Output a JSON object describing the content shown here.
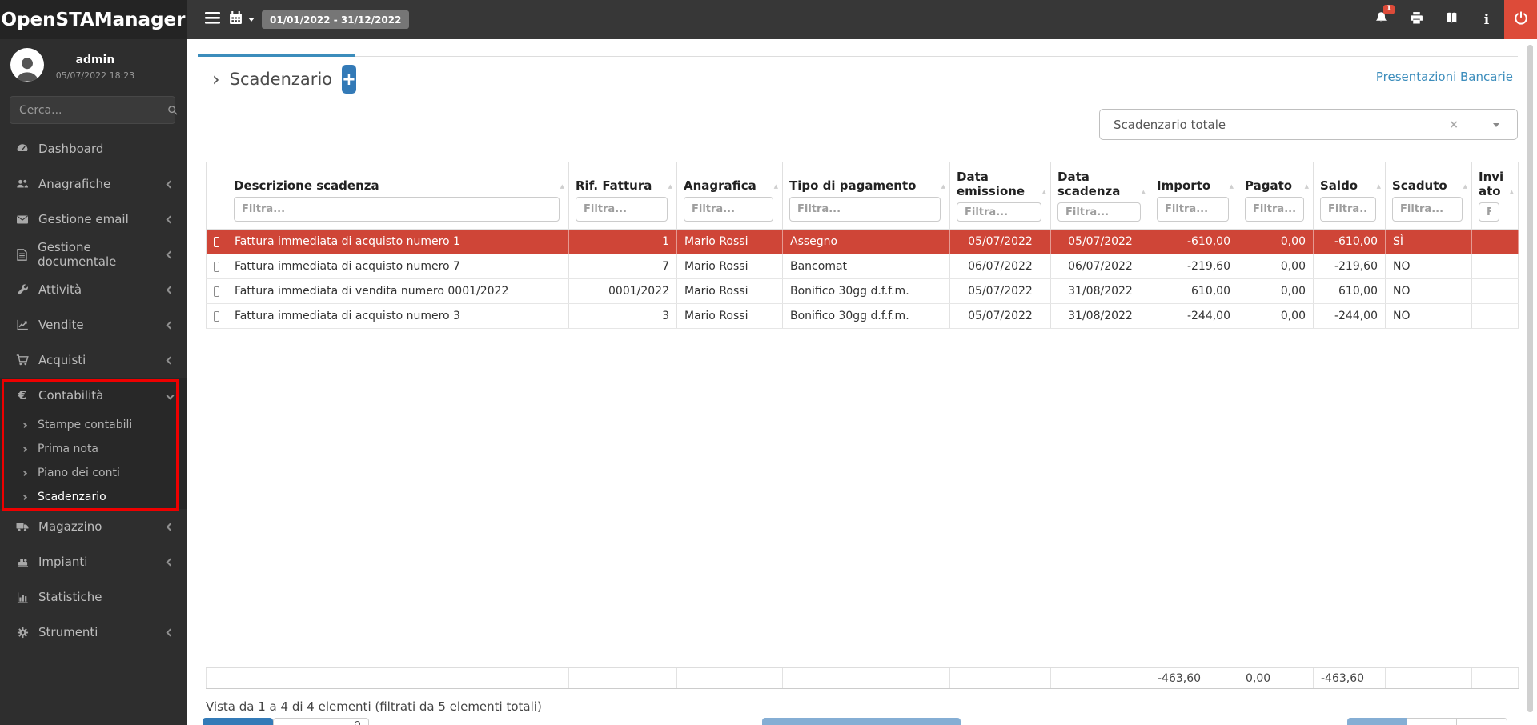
{
  "app": {
    "title": "OpenSTAManager"
  },
  "topbar": {
    "date_range": "01/01/2022 - 31/12/2022",
    "notification_count": "1"
  },
  "user": {
    "name": "admin",
    "datetime": "05/07/2022 18:23"
  },
  "sidebar": {
    "search_placeholder": "Cerca...",
    "items": [
      {
        "id": "dashboard",
        "icon": "gauge-icon",
        "label": "Dashboard",
        "chevron": "none"
      },
      {
        "id": "anagrafiche",
        "icon": "users-icon",
        "label": "Anagrafiche",
        "chevron": "left"
      },
      {
        "id": "gestione-email",
        "icon": "envelope-icon",
        "label": "Gestione email",
        "chevron": "left"
      },
      {
        "id": "gestione-documentale",
        "icon": "document-icon",
        "label": "Gestione documentale",
        "chevron": "left"
      },
      {
        "id": "attivita",
        "icon": "wrench-icon",
        "label": "Attività",
        "chevron": "left"
      },
      {
        "id": "vendite",
        "icon": "chart-line-icon",
        "label": "Vendite",
        "chevron": "left"
      },
      {
        "id": "acquisti",
        "icon": "cart-icon",
        "label": "Acquisti",
        "chevron": "left"
      },
      {
        "id": "contabilita",
        "icon": "euro-icon",
        "label": "Contabilità",
        "chevron": "down",
        "expanded": true,
        "submenu": [
          {
            "label": "Stampe contabili",
            "active": false
          },
          {
            "label": "Prima nota",
            "active": false
          },
          {
            "label": "Piano dei conti",
            "active": false
          },
          {
            "label": "Scadenzario",
            "active": true
          }
        ]
      },
      {
        "id": "magazzino",
        "icon": "truck-icon",
        "label": "Magazzino",
        "chevron": "left"
      },
      {
        "id": "impianti",
        "icon": "machine-icon",
        "label": "Impianti",
        "chevron": "left"
      },
      {
        "id": "statistiche",
        "icon": "bar-chart-icon",
        "label": "Statistiche",
        "chevron": "none"
      },
      {
        "id": "strumenti",
        "icon": "gear-icon",
        "label": "Strumenti",
        "chevron": "left"
      }
    ]
  },
  "main": {
    "tab_title": "Scadenzario",
    "add_button": "+",
    "link": "Presentazioni Bancarie",
    "filter_select_value": "Scadenzario totale",
    "info_text": "Vista da 1 a 4 di 4 elementi (filtrati da 5 elementi totali)"
  },
  "table": {
    "filter_placeholder": "Filtra...",
    "columns": [
      {
        "key": "desc",
        "label": "Descrizione scadenza"
      },
      {
        "key": "rif",
        "label": "Rif. Fattura"
      },
      {
        "key": "anagrafica",
        "label": "Anagrafica"
      },
      {
        "key": "tipo",
        "label": "Tipo di pagamento"
      },
      {
        "key": "emissione",
        "label": "Data emissione"
      },
      {
        "key": "scadenza",
        "label": "Data scadenza"
      },
      {
        "key": "importo",
        "label": "Importo"
      },
      {
        "key": "pagato",
        "label": "Pagato"
      },
      {
        "key": "saldo",
        "label": "Saldo"
      },
      {
        "key": "scaduto",
        "label": "Scaduto"
      },
      {
        "key": "inviato",
        "label": "Inviato"
      }
    ],
    "rows": [
      {
        "desc": "Fattura immediata di acquisto numero 1",
        "rif": "1",
        "anagrafica": "Mario Rossi",
        "tipo": "Assegno",
        "emissione": "05/07/2022",
        "scadenza": "05/07/2022",
        "importo": "-610,00",
        "pagato": "0,00",
        "saldo": "-610,00",
        "scaduto": "SÌ",
        "inviato": "",
        "highlighted": true
      },
      {
        "desc": "Fattura immediata di acquisto numero 7",
        "rif": "7",
        "anagrafica": "Mario Rossi",
        "tipo": "Bancomat",
        "emissione": "06/07/2022",
        "scadenza": "06/07/2022",
        "importo": "-219,60",
        "pagato": "0,00",
        "saldo": "-219,60",
        "scaduto": "NO",
        "inviato": "",
        "highlighted": false
      },
      {
        "desc": "Fattura immediata di vendita numero 0001/2022",
        "rif": "0001/2022",
        "anagrafica": "Mario Rossi",
        "tipo": "Bonifico 30gg d.f.f.m.",
        "emissione": "05/07/2022",
        "scadenza": "31/08/2022",
        "importo": "610,00",
        "pagato": "0,00",
        "saldo": "610,00",
        "scaduto": "NO",
        "inviato": "",
        "highlighted": false
      },
      {
        "desc": "Fattura immediata di acquisto numero 3",
        "rif": "3",
        "anagrafica": "Mario Rossi",
        "tipo": "Bonifico 30gg d.f.f.m.",
        "emissione": "05/07/2022",
        "scadenza": "31/08/2022",
        "importo": "-244,00",
        "pagato": "0,00",
        "saldo": "-244,00",
        "scaduto": "NO",
        "inviato": "",
        "highlighted": false
      }
    ],
    "totals": {
      "importo": "-463,60",
      "pagato": "0,00",
      "saldo": "-463,60"
    }
  },
  "colors": {
    "accent": "#3c8dbc",
    "primary": "#337ab7",
    "danger": "#dd4b39",
    "row_highlight": "#cf4537",
    "light_blue_button": "#85aed4"
  }
}
